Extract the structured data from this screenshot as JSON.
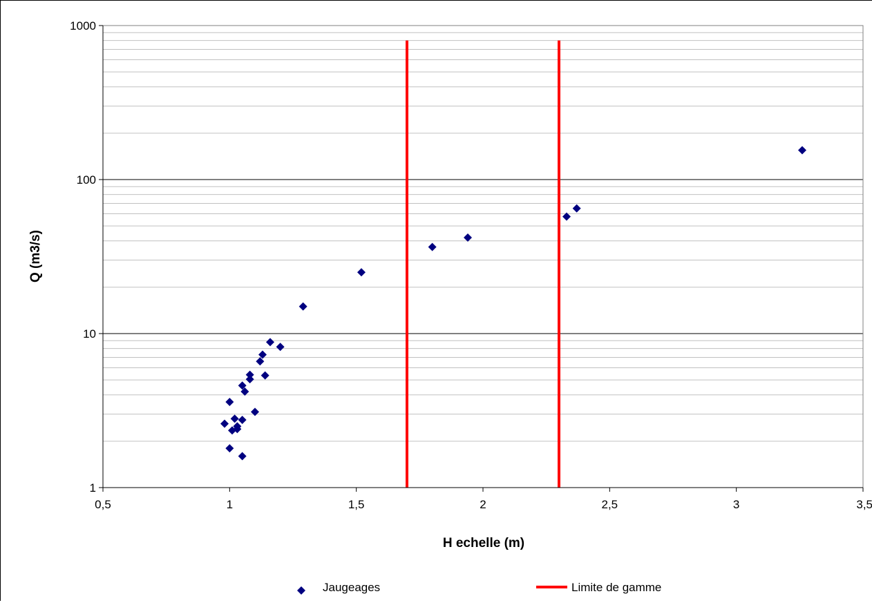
{
  "chart_data": {
    "type": "scatter",
    "xlabel": "H echelle (m)",
    "ylabel": "Q (m3/s)",
    "xlim": [
      0.5,
      3.5
    ],
    "ylim": [
      1,
      1000
    ],
    "y_scale": "log",
    "grid": "horizontal major and minor",
    "x_ticks": [
      "0,5",
      "1",
      "1,5",
      "2",
      "2,5",
      "3",
      "3,5"
    ],
    "y_ticks": [
      "1",
      "10",
      "100",
      "1000"
    ],
    "legend_position": "bottom",
    "series": [
      {
        "name": "Jaugeages",
        "marker": "diamond",
        "color": "#000080",
        "points": [
          {
            "x": 0.98,
            "y": 2.6
          },
          {
            "x": 1.0,
            "y": 3.6
          },
          {
            "x": 1.0,
            "y": 1.8
          },
          {
            "x": 1.01,
            "y": 2.35
          },
          {
            "x": 1.02,
            "y": 2.8
          },
          {
            "x": 1.03,
            "y": 2.4
          },
          {
            "x": 1.03,
            "y": 2.5
          },
          {
            "x": 1.05,
            "y": 2.75
          },
          {
            "x": 1.05,
            "y": 4.6
          },
          {
            "x": 1.05,
            "y": 1.6
          },
          {
            "x": 1.06,
            "y": 4.2
          },
          {
            "x": 1.08,
            "y": 5.05
          },
          {
            "x": 1.08,
            "y": 5.4
          },
          {
            "x": 1.1,
            "y": 3.1
          },
          {
            "x": 1.12,
            "y": 6.6
          },
          {
            "x": 1.13,
            "y": 7.3
          },
          {
            "x": 1.14,
            "y": 5.35
          },
          {
            "x": 1.16,
            "y": 8.8
          },
          {
            "x": 1.2,
            "y": 8.2
          },
          {
            "x": 1.29,
            "y": 15.0
          },
          {
            "x": 1.52,
            "y": 25.0
          },
          {
            "x": 1.8,
            "y": 36.5
          },
          {
            "x": 1.94,
            "y": 42.0
          },
          {
            "x": 2.33,
            "y": 57.5
          },
          {
            "x": 2.37,
            "y": 65.0
          },
          {
            "x": 3.26,
            "y": 155.0
          }
        ]
      },
      {
        "name": "Limite de gamme",
        "type": "vertical-lines",
        "color": "#ff0000",
        "x_values": [
          1.7,
          2.3
        ],
        "y_range": [
          1,
          800
        ]
      }
    ]
  }
}
